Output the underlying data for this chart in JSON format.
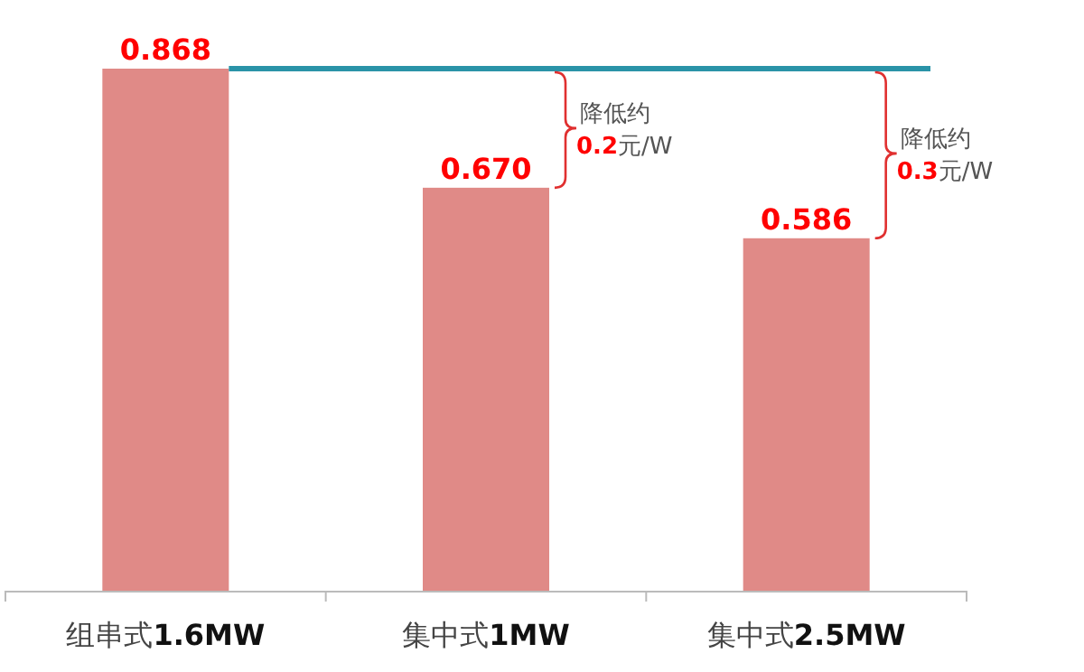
{
  "chart_data": {
    "type": "bar",
    "categories": [
      "组串式**1.6MW**",
      "集中式**1MW**",
      "集中式**2.5MW**"
    ],
    "values": [
      0.868,
      0.67,
      0.586
    ],
    "value_labels": [
      "0.868",
      "0.670",
      "0.586"
    ],
    "color": "#e08a87",
    "ref_lines": [
      {
        "axis": "y",
        "value": 0.868,
        "color": "#2a93a8"
      }
    ],
    "annotations": [
      "降低约0.2元/W",
      "降低约0.3元/W"
    ]
  }
}
